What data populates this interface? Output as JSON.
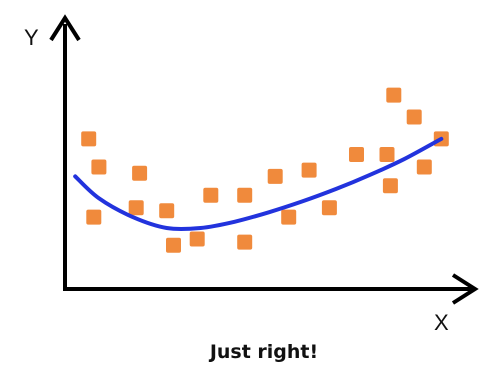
{
  "chart_data": {
    "type": "scatter",
    "title": "",
    "caption": "Just right!",
    "xlabel": "X",
    "ylabel": "Y",
    "x_ticks": "none",
    "y_ticks": "none",
    "grid": false,
    "legend": "none",
    "colors": {
      "points": "#f08a3c",
      "curve": "#2233dd",
      "axes": "#000000"
    },
    "points": [
      {
        "x": 0.7,
        "y": 4.8
      },
      {
        "x": 1.0,
        "y": 3.9
      },
      {
        "x": 0.85,
        "y": 2.3
      },
      {
        "x": 2.2,
        "y": 3.7
      },
      {
        "x": 2.1,
        "y": 2.6
      },
      {
        "x": 3.0,
        "y": 2.5
      },
      {
        "x": 3.2,
        "y": 1.4
      },
      {
        "x": 3.9,
        "y": 1.6
      },
      {
        "x": 4.3,
        "y": 3.0
      },
      {
        "x": 5.3,
        "y": 3.0
      },
      {
        "x": 5.3,
        "y": 1.5
      },
      {
        "x": 6.2,
        "y": 3.6
      },
      {
        "x": 6.6,
        "y": 2.3
      },
      {
        "x": 7.2,
        "y": 3.8
      },
      {
        "x": 7.8,
        "y": 2.6
      },
      {
        "x": 8.6,
        "y": 4.3
      },
      {
        "x": 9.5,
        "y": 4.3
      },
      {
        "x": 9.6,
        "y": 3.3
      },
      {
        "x": 9.7,
        "y": 6.2
      },
      {
        "x": 10.3,
        "y": 5.5
      },
      {
        "x": 10.6,
        "y": 3.9
      },
      {
        "x": 11.1,
        "y": 4.8
      }
    ],
    "fit_curve": {
      "x": [
        0.3,
        1.0,
        2.0,
        3.0,
        4.0,
        5.0,
        6.0,
        7.0,
        8.0,
        9.0,
        10.0,
        11.1
      ],
      "y": [
        3.6,
        2.9,
        2.3,
        1.95,
        1.95,
        2.15,
        2.45,
        2.8,
        3.2,
        3.65,
        4.15,
        4.8
      ]
    },
    "xlim": [
      0,
      11.8
    ],
    "ylim": [
      0,
      8.6
    ]
  }
}
